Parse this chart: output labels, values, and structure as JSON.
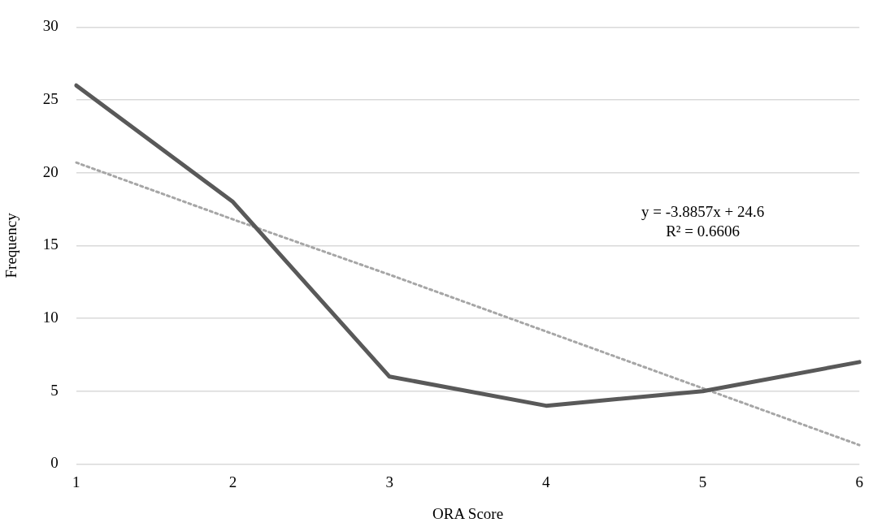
{
  "chart_data": {
    "type": "line",
    "xlabel": "ORA Score",
    "ylabel": "Frequency",
    "categories": [
      "1",
      "2",
      "3",
      "4",
      "5",
      "6"
    ],
    "series": [
      {
        "color": "#595959",
        "values": [
          26,
          18,
          6,
          4,
          5,
          7
        ],
        "line_style": "solid"
      },
      {
        "type": "line",
        "color": "#a6a6a6",
        "values": [
          20.7,
          16.8,
          13.0,
          9.1,
          5.2,
          1.3
        ],
        "line_style": "dotted"
      }
    ],
    "ylim": [
      0,
      30
    ],
    "yticks": [
      0,
      5,
      10,
      15,
      20,
      25,
      30
    ],
    "grid": "y",
    "legend": false,
    "marker": "none",
    "annotations": [
      "y = -3.8857x + 24.6",
      "R² = 0.6606"
    ]
  }
}
